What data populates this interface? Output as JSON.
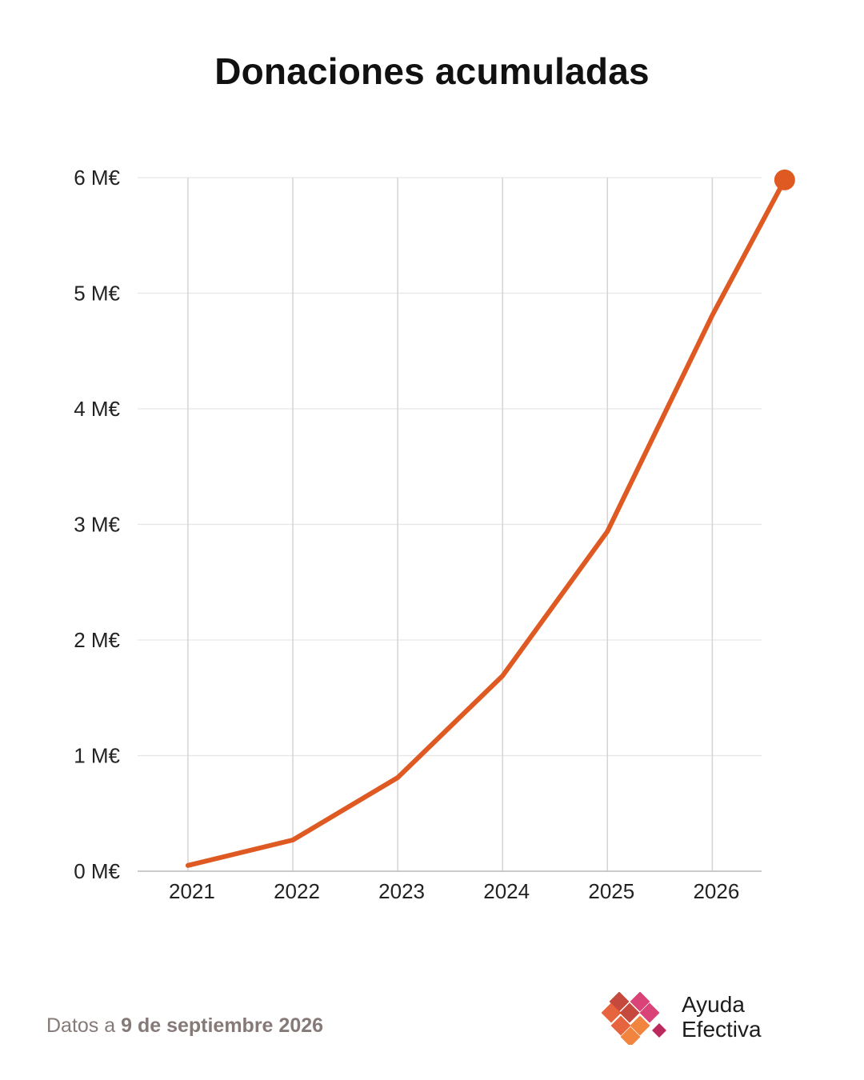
{
  "title": "Donaciones acumuladas",
  "footer": {
    "prefix": "Datos a ",
    "date": "9 de septiembre 2026"
  },
  "logo": {
    "line1": "Ayuda",
    "line2": "Efectiva",
    "colors": [
      "#c0392b",
      "#d6336c",
      "#e4572e",
      "#f07a2f",
      "#b5174f"
    ]
  },
  "chart_data": {
    "type": "line",
    "title": "Donaciones acumuladas",
    "xlabel": "",
    "ylabel": "",
    "x": [
      2021,
      2022,
      2023,
      2024,
      2025,
      2026,
      2026.69
    ],
    "x_ticks": [
      "2021",
      "2022",
      "2023",
      "2024",
      "2025",
      "2026"
    ],
    "series": [
      {
        "values": [
          0.05,
          0.27,
          0.81,
          1.69,
          2.94,
          4.81,
          5.98
        ],
        "color": "#df5a22"
      }
    ],
    "y_ticks": [
      "0 M€",
      "1 M€",
      "2 M€",
      "3 M€",
      "4 M€",
      "5 M€",
      "6 M€"
    ],
    "ylim": [
      0,
      6
    ],
    "xlim": [
      2020.52,
      2026.47
    ],
    "grid": true,
    "end_marker": true,
    "legend": "none"
  }
}
